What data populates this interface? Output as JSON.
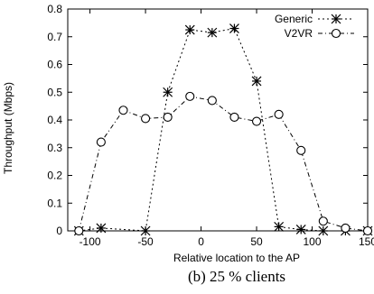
{
  "chart_data": {
    "type": "line",
    "xlabel": "Relative location to the AP",
    "ylabel": "Throughput (Mbps)",
    "caption": "(b) 25 % clients",
    "xlim": [
      -120,
      150
    ],
    "ylim": [
      0,
      0.8
    ],
    "xticks": [
      -100,
      -50,
      0,
      50,
      100,
      150
    ],
    "yticks": [
      0,
      0.1,
      0.2,
      0.3,
      0.4,
      0.5,
      0.6,
      0.7,
      0.8
    ],
    "grid": false,
    "legend_position": "top-right",
    "series": [
      {
        "name": "Generic",
        "marker": "asterisk",
        "line": "dotted",
        "x": [
          -110,
          -90,
          -50,
          -30,
          -10,
          10,
          30,
          50,
          70,
          90,
          110,
          130,
          150
        ],
        "y": [
          0.0,
          0.01,
          0.0,
          0.5,
          0.725,
          0.715,
          0.73,
          0.54,
          0.015,
          0.005,
          0.0,
          0.0,
          0.0
        ]
      },
      {
        "name": "V2VR",
        "marker": "circle",
        "line": "dashdot",
        "x": [
          -110,
          -90,
          -70,
          -50,
          -30,
          -10,
          10,
          30,
          50,
          70,
          90,
          110,
          130,
          150
        ],
        "y": [
          0.0,
          0.32,
          0.435,
          0.405,
          0.41,
          0.485,
          0.47,
          0.41,
          0.395,
          0.42,
          0.29,
          0.035,
          0.01,
          0.0
        ]
      }
    ]
  }
}
